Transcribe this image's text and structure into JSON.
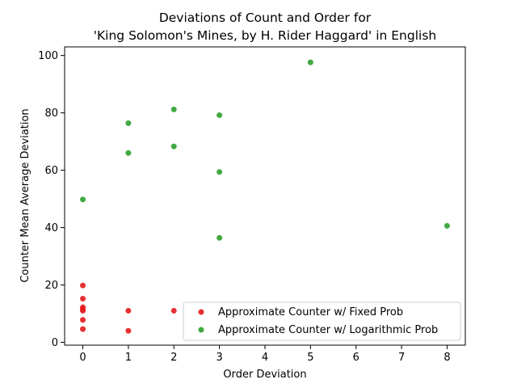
{
  "chart_data": {
    "type": "scatter",
    "title_lines": [
      "Deviations of Count and Order for",
      "'King Solomon's Mines, by H. Rider Haggard' in English"
    ],
    "xlabel": "Order Deviation",
    "ylabel": "Counter Mean Average Deviation",
    "xlim": [
      -0.4,
      8.4
    ],
    "ylim": [
      -1,
      103
    ],
    "xticks": [
      0,
      1,
      2,
      3,
      4,
      5,
      6,
      7,
      8
    ],
    "yticks": [
      0,
      20,
      40,
      60,
      80,
      100
    ],
    "grid": false,
    "legend_position": "lower-right",
    "series": [
      {
        "name": "Approximate Counter w/ Fixed Prob",
        "color": "#e41a1c",
        "points": [
          {
            "x": 0,
            "y": 19.8
          },
          {
            "x": 0,
            "y": 15.2
          },
          {
            "x": 0,
            "y": 12.2
          },
          {
            "x": 0,
            "y": 11.5
          },
          {
            "x": 0,
            "y": 11.0
          },
          {
            "x": 0,
            "y": 7.8
          },
          {
            "x": 0,
            "y": 4.6
          },
          {
            "x": 1,
            "y": 11.0
          },
          {
            "x": 1,
            "y": 4.0
          },
          {
            "x": 2,
            "y": 11.0
          }
        ]
      },
      {
        "name": "Approximate Counter w/ Logarithmic Prob",
        "color": "#2ca02c",
        "points": [
          {
            "x": 0,
            "y": 49.8
          },
          {
            "x": 1,
            "y": 76.4
          },
          {
            "x": 1,
            "y": 66.0
          },
          {
            "x": 2,
            "y": 81.2
          },
          {
            "x": 2,
            "y": 68.3
          },
          {
            "x": 3,
            "y": 79.2
          },
          {
            "x": 3,
            "y": 59.4
          },
          {
            "x": 3,
            "y": 36.4
          },
          {
            "x": 5,
            "y": 97.6
          },
          {
            "x": 8,
            "y": 40.6
          }
        ]
      }
    ]
  }
}
